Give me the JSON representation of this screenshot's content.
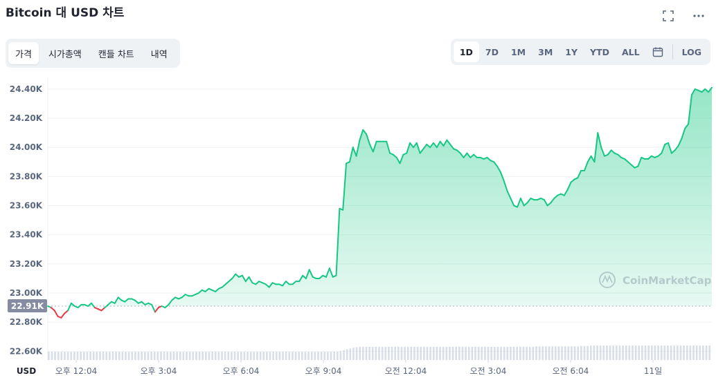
{
  "title": "Bitcoin 대 USD 차트",
  "top_icons": [
    {
      "name": "fullscreen-icon",
      "glyph": "⛶"
    },
    {
      "name": "more-icon",
      "glyph": "···"
    }
  ],
  "tabs": [
    {
      "label": "가격",
      "active": true
    },
    {
      "label": "시가총액",
      "active": false
    },
    {
      "label": "캔들 차트",
      "active": false
    },
    {
      "label": "내역",
      "active": false
    }
  ],
  "ranges": [
    {
      "label": "1D",
      "active": true
    },
    {
      "label": "7D",
      "active": false
    },
    {
      "label": "1M",
      "active": false
    },
    {
      "label": "3M",
      "active": false
    },
    {
      "label": "1Y",
      "active": false
    },
    {
      "label": "YTD",
      "active": false
    },
    {
      "label": "ALL",
      "active": false
    }
  ],
  "calendar_icon": "calendar-icon",
  "log_label": "LOG",
  "watermark": "CoinMarketCap",
  "chart_data": {
    "type": "area",
    "currency_label": "USD",
    "current_price_label": "22.91K",
    "reference_price": 22910,
    "ylim": [
      22540,
      24480
    ],
    "y_ticks": [
      {
        "value": 24400,
        "label": "24.40K"
      },
      {
        "value": 24200,
        "label": "24.20K"
      },
      {
        "value": 24000,
        "label": "24.00K"
      },
      {
        "value": 23800,
        "label": "23.80K"
      },
      {
        "value": 23600,
        "label": "23.60K"
      },
      {
        "value": 23400,
        "label": "23.40K"
      },
      {
        "value": 23200,
        "label": "23.20K"
      },
      {
        "value": 23000,
        "label": "23.00K"
      },
      {
        "value": 22800,
        "label": "22.80K"
      },
      {
        "value": 22600,
        "label": "22.60K"
      }
    ],
    "x_ticks": [
      "오후 12:04",
      "오후 3:04",
      "오후 6:04",
      "오후 9:04",
      "오전 12:04",
      "오전 3:04",
      "오전 6:04",
      "11일"
    ],
    "colors": {
      "up": "#16c784",
      "down": "#ea3943",
      "fill": "#16c784",
      "grid": "#eff2f5",
      "volume": "#cfd6e4",
      "ref_line": "#a6b0c3",
      "badge": "#858ca2"
    },
    "series": [
      {
        "values": [
          22910,
          22900,
          22880,
          22840,
          22830,
          22860,
          22880,
          22930,
          22910,
          22900,
          22920,
          22920,
          22910,
          22930,
          22900,
          22890,
          22880,
          22900,
          22920,
          22940,
          22930,
          22970,
          22950,
          22940,
          22960,
          22960,
          22950,
          22930,
          22940,
          22920,
          22930,
          22920,
          22870,
          22900,
          22910,
          22900,
          22920,
          22950,
          22970,
          22960,
          22970,
          22990,
          22980,
          22980,
          22990,
          23000,
          23020,
          23010,
          23030,
          23020,
          23010,
          23030,
          23040,
          23060,
          23080,
          23100,
          23130,
          23110,
          23120,
          23080,
          23110,
          23070,
          23060,
          23080,
          23070,
          23060,
          23040,
          23070,
          23060,
          23060,
          23050,
          23080,
          23060,
          23060,
          23080,
          23080,
          23120,
          23100,
          23160,
          23110,
          23100,
          23100,
          23120,
          23110,
          23170,
          23110,
          23120,
          23580,
          23570,
          23890,
          23900,
          24000,
          23940,
          24050,
          24120,
          24090,
          24020,
          23970,
          24040,
          24040,
          24040,
          24040,
          23960,
          23950,
          23930,
          23890,
          23950,
          23960,
          24030,
          24000,
          24030,
          23960,
          23990,
          24020,
          24000,
          24030,
          24000,
          24040,
          24010,
          24050,
          24020,
          23990,
          23980,
          23960,
          23930,
          23960,
          23930,
          23950,
          23930,
          23930,
          23920,
          23930,
          23910,
          23900,
          23870,
          23830,
          23770,
          23700,
          23650,
          23600,
          23590,
          23650,
          23600,
          23620,
          23650,
          23640,
          23640,
          23650,
          23640,
          23600,
          23620,
          23650,
          23670,
          23680,
          23670,
          23710,
          23760,
          23780,
          23790,
          23840,
          23840,
          23900,
          23940,
          23900,
          24100,
          24000,
          23940,
          23950,
          23980,
          23960,
          23950,
          23930,
          23920,
          23900,
          23880,
          23860,
          23870,
          23930,
          23920,
          23920,
          23940,
          23930,
          23940,
          23960,
          24020,
          24030,
          23960,
          23980,
          24010,
          24060,
          24130,
          24160,
          24360,
          24400,
          24390,
          24380,
          24400,
          24380,
          24410
        ]
      }
    ],
    "volume": [
      20,
      20,
      20,
      20,
      20,
      20,
      20,
      20,
      20,
      20,
      20,
      20,
      20,
      20,
      20,
      20,
      20,
      20,
      20,
      20,
      20,
      20,
      20,
      20,
      20,
      20,
      20,
      20,
      20,
      20,
      20,
      20,
      20,
      20,
      20,
      20,
      20,
      20,
      20,
      20,
      20,
      20,
      20,
      20,
      20,
      20,
      20,
      20,
      20,
      20,
      20,
      20,
      20,
      20,
      20,
      20,
      20,
      20,
      20,
      20,
      20,
      20,
      20,
      20,
      20,
      20,
      20,
      20,
      20,
      20,
      20,
      20,
      20,
      20,
      20,
      20,
      20,
      20,
      20,
      20,
      20,
      20,
      20,
      20,
      20,
      20,
      20,
      20,
      20,
      20,
      20,
      22,
      24,
      26,
      28,
      30,
      31,
      32,
      32,
      32,
      32,
      32,
      32,
      32,
      32,
      32,
      32,
      32,
      32,
      32,
      32,
      32,
      32,
      32,
      32,
      32,
      32,
      32,
      32,
      32,
      32,
      32,
      32,
      32,
      32,
      32,
      32,
      32,
      32,
      32,
      32,
      32,
      32,
      32,
      32,
      32,
      32,
      32,
      32,
      32,
      32,
      32,
      32,
      32,
      32,
      32,
      32,
      32,
      32,
      32,
      32,
      32,
      33,
      33,
      33,
      33,
      33,
      33,
      33,
      33,
      33,
      33,
      33,
      33,
      33,
      33,
      34,
      34,
      34,
      35,
      35,
      35,
      35,
      35,
      35,
      35,
      35,
      35,
      35,
      35,
      35,
      35,
      35,
      35,
      35,
      35,
      35,
      35,
      35,
      35,
      35,
      35,
      35,
      35,
      35,
      35,
      35,
      35,
      35,
      35,
      35,
      35,
      35,
      35,
      35,
      35,
      35
    ]
  }
}
